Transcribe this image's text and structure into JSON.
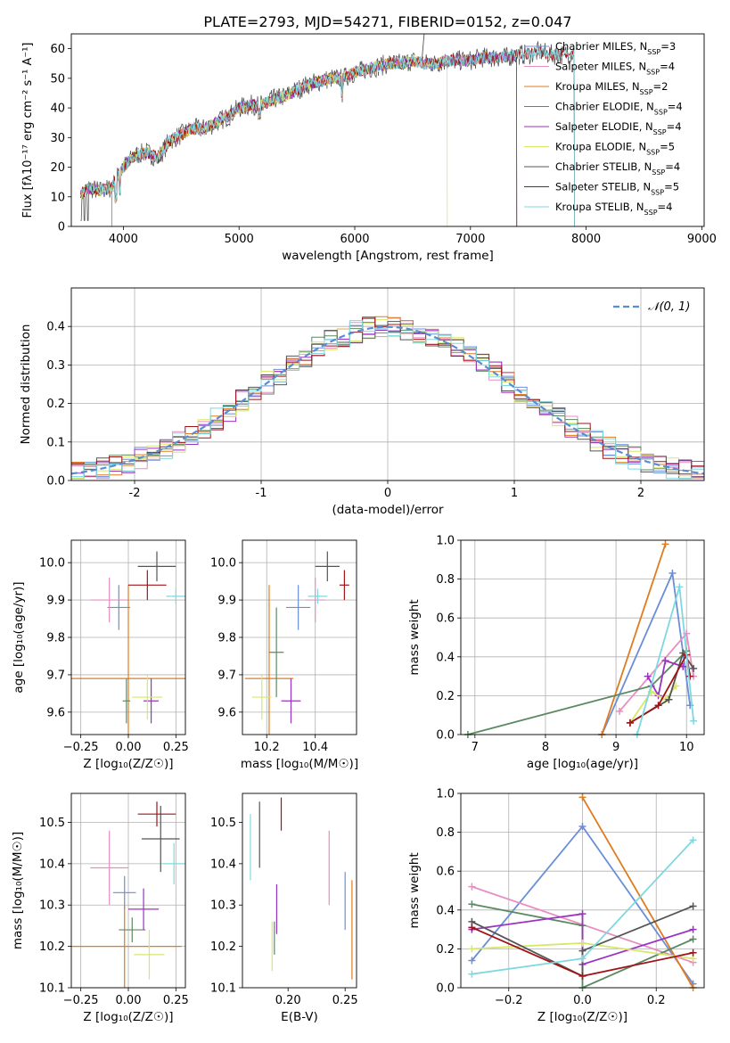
{
  "figure_title": "PLATE=2793, MJD=54271, FIBERID=0152, z=0.047",
  "colors": {
    "Chabrier MILES": "#6a8fd8",
    "Salpeter MILES": "#e88ec0",
    "Kroupa MILES": "#e07b1f",
    "Chabrier ELODIE": "#5b8a62",
    "Salpeter ELODIE": "#9c32c0",
    "Kroupa ELODIE": "#d6e86a",
    "Chabrier STELIB": "#555555",
    "Salpeter STELIB": "#a01418",
    "Kroupa STELIB": "#7fd8e0"
  },
  "legend_spectrum": [
    {
      "model": "Chabrier MILES",
      "label": "Chabrier MILES, N",
      "sub": "SSP",
      "suffix": "=3"
    },
    {
      "model": "Salpeter MILES",
      "label": "Salpeter MILES, N",
      "sub": "SSP",
      "suffix": "=4"
    },
    {
      "model": "Kroupa MILES",
      "label": "Kroupa MILES, N",
      "sub": "SSP",
      "suffix": "=2"
    },
    {
      "model": "Chabrier ELODIE",
      "label": "Chabrier ELODIE, N",
      "sub": "SSP",
      "suffix": "=4"
    },
    {
      "model": "Salpeter ELODIE",
      "label": "Salpeter ELODIE, N",
      "sub": "SSP",
      "suffix": "=4"
    },
    {
      "model": "Kroupa ELODIE",
      "label": "Kroupa ELODIE, N",
      "sub": "SSP",
      "suffix": "=5"
    },
    {
      "model": "Chabrier STELIB",
      "label": "Chabrier STELIB, N",
      "sub": "SSP",
      "suffix": "=4"
    },
    {
      "model": "Salpeter STELIB",
      "label": "Salpeter STELIB, N",
      "sub": "SSP",
      "suffix": "=5"
    },
    {
      "model": "Kroupa STELIB",
      "label": "Kroupa STELIB, N",
      "sub": "SSP",
      "suffix": "=4"
    }
  ],
  "chart_data": [
    {
      "type": "line",
      "id": "spectrum",
      "xlabel": "wavelength [Angstrom, rest frame]",
      "ylabel": "Flux [fλ10⁻¹⁷ erg cm⁻² s⁻¹ A⁻¹]",
      "xlim": [
        3550,
        9020
      ],
      "ylim": [
        0,
        65
      ],
      "xticks": [
        4000,
        5000,
        6000,
        7000,
        8000,
        9000
      ],
      "yticks": [
        0,
        10,
        20,
        30,
        40,
        50,
        60
      ],
      "grid": false,
      "legend_position": "top-right",
      "continuum": [
        [
          3630,
          11
        ],
        [
          3700,
          13
        ],
        [
          3800,
          12
        ],
        [
          3900,
          13
        ],
        [
          3950,
          17
        ],
        [
          4000,
          20
        ],
        [
          4100,
          24
        ],
        [
          4200,
          25
        ],
        [
          4300,
          23
        ],
        [
          4400,
          29
        ],
        [
          4500,
          31
        ],
        [
          4600,
          33
        ],
        [
          4700,
          33
        ],
        [
          4800,
          35
        ],
        [
          4900,
          37
        ],
        [
          5000,
          40
        ],
        [
          5100,
          41
        ],
        [
          5200,
          41
        ],
        [
          5300,
          43
        ],
        [
          5400,
          44
        ],
        [
          5500,
          46
        ],
        [
          5600,
          48
        ],
        [
          5700,
          49
        ],
        [
          5800,
          50
        ],
        [
          5900,
          50
        ],
        [
          6000,
          52
        ],
        [
          6100,
          53
        ],
        [
          6200,
          54
        ],
        [
          6300,
          55
        ],
        [
          6400,
          55
        ],
        [
          6500,
          56
        ],
        [
          6600,
          55
        ],
        [
          6700,
          55
        ],
        [
          6800,
          56
        ],
        [
          6900,
          56
        ],
        [
          7000,
          56
        ],
        [
          7100,
          57
        ],
        [
          7200,
          57
        ],
        [
          7300,
          57
        ],
        [
          7400,
          58
        ],
        [
          7500,
          58
        ],
        [
          7600,
          59
        ],
        [
          7700,
          58
        ],
        [
          7800,
          58
        ],
        [
          7900,
          59
        ]
      ],
      "models_end_wavelength": {
        "Chabrier MILES": 7400,
        "Salpeter MILES": 7400,
        "Kroupa MILES": 7400,
        "Kroupa ELODIE": 6800,
        "Salpeter ELODIE": 7400,
        "Chabrier ELODIE": 7400,
        "Chabrier STELIB": 7900,
        "Salpeter STELIB": 7900,
        "Kroupa STELIB": 7900
      }
    },
    {
      "type": "histogram",
      "id": "residuals",
      "xlabel": "(data-model)/error",
      "ylabel": "Normed distribution",
      "xlim": [
        -2.5,
        2.5
      ],
      "ylim": [
        0,
        0.5
      ],
      "xticks": [
        -2,
        -1,
        0,
        1,
        2
      ],
      "yticks": [
        0.0,
        0.1,
        0.2,
        0.3,
        0.4
      ],
      "grid": true,
      "bin_width": 0.1,
      "reference_curve": {
        "label": "𝒩(0, 1)",
        "color": "#5b8bd0",
        "style": "dashed",
        "mean": 0,
        "sigma": 1
      },
      "legend_position": "top-right"
    },
    {
      "type": "errorbar",
      "id": "age_vs_Z",
      "xlabel": "Z [log₁₀(Z/Z☉)]",
      "ylabel": "age  [log₁₀(age/yr)]",
      "xlim": [
        -0.3,
        0.3
      ],
      "ylim": [
        9.54,
        10.06
      ],
      "xticks": [
        -0.25,
        0.0,
        0.25
      ],
      "xticklabels": [
        "−0.25",
        "0.00",
        "0.25"
      ],
      "yticks": [
        9.6,
        9.7,
        9.8,
        9.9,
        10.0
      ],
      "grid": true,
      "points": [
        {
          "model": "Chabrier MILES",
          "x": -0.05,
          "y": 9.88,
          "xerr": 0.06,
          "yerr": 0.06
        },
        {
          "model": "Salpeter MILES",
          "x": -0.1,
          "y": 9.9,
          "xerr": 0.1,
          "yerr": 0.06
        },
        {
          "model": "Kroupa MILES",
          "x": 0.0,
          "y": 9.69,
          "xerr": 0.3,
          "yerr": 0.25
        },
        {
          "model": "Chabrier ELODIE",
          "x": -0.01,
          "y": 9.63,
          "xerr": 0.02,
          "yerr": 0.06
        },
        {
          "model": "Salpeter ELODIE",
          "x": 0.12,
          "y": 9.63,
          "xerr": 0.04,
          "yerr": 0.06
        },
        {
          "model": "Kroupa ELODIE",
          "x": 0.1,
          "y": 9.64,
          "xerr": 0.08,
          "yerr": 0.06
        },
        {
          "model": "Chabrier STELIB",
          "x": 0.15,
          "y": 9.99,
          "xerr": 0.1,
          "yerr": 0.04
        },
        {
          "model": "Salpeter STELIB",
          "x": 0.1,
          "y": 9.94,
          "xerr": 0.1,
          "yerr": 0.04
        },
        {
          "model": "Kroupa STELIB",
          "x": 0.25,
          "y": 9.91,
          "xerr": 0.05,
          "yerr": 0.02
        }
      ]
    },
    {
      "type": "errorbar",
      "id": "age_vs_mass",
      "xlabel": "mass [log₁₀(M/M☉)]",
      "ylabel": "",
      "xlim": [
        10.1,
        10.57
      ],
      "ylim": [
        9.54,
        10.06
      ],
      "xticks": [
        10.2,
        10.4
      ],
      "yticks": [
        9.6,
        9.7,
        9.8,
        9.9,
        10.0
      ],
      "grid": true,
      "points": [
        {
          "model": "Chabrier MILES",
          "x": 10.33,
          "y": 9.88,
          "xerr": 0.05,
          "yerr": 0.06
        },
        {
          "model": "Salpeter MILES",
          "x": 10.4,
          "y": 9.9,
          "xerr": 0.04,
          "yerr": 0.06
        },
        {
          "model": "Kroupa MILES",
          "x": 10.21,
          "y": 9.69,
          "xerr": 0.1,
          "yerr": 0.25
        },
        {
          "model": "Chabrier ELODIE",
          "x": 10.24,
          "y": 9.76,
          "xerr": 0.03,
          "yerr": 0.12
        },
        {
          "model": "Salpeter ELODIE",
          "x": 10.3,
          "y": 9.63,
          "xerr": 0.04,
          "yerr": 0.06
        },
        {
          "model": "Kroupa ELODIE",
          "x": 10.18,
          "y": 9.64,
          "xerr": 0.04,
          "yerr": 0.06
        },
        {
          "model": "Chabrier STELIB",
          "x": 10.45,
          "y": 9.99,
          "xerr": 0.05,
          "yerr": 0.04
        },
        {
          "model": "Salpeter STELIB",
          "x": 10.52,
          "y": 9.94,
          "xerr": 0.02,
          "yerr": 0.04
        },
        {
          "model": "Kroupa STELIB",
          "x": 10.41,
          "y": 9.91,
          "xerr": 0.04,
          "yerr": 0.02
        }
      ]
    },
    {
      "type": "line",
      "id": "mass_weight_vs_age",
      "xlabel": "age  [log₁₀(age/yr)]",
      "ylabel": "mass weight",
      "xlim": [
        6.8,
        10.25
      ],
      "ylim": [
        0,
        1
      ],
      "xticks": [
        7,
        8,
        9,
        10
      ],
      "yticks": [
        0.0,
        0.2,
        0.4,
        0.6,
        0.8,
        1.0
      ],
      "grid": true,
      "series": [
        {
          "model": "Chabrier MILES",
          "points": [
            [
              8.8,
              0.0
            ],
            [
              9.8,
              0.83
            ],
            [
              10.05,
              0.15
            ]
          ]
        },
        {
          "model": "Salpeter MILES",
          "points": [
            [
              9.05,
              0.12
            ],
            [
              10.0,
              0.52
            ],
            [
              10.1,
              0.3
            ]
          ]
        },
        {
          "model": "Kroupa MILES",
          "points": [
            [
              8.8,
              0.0
            ],
            [
              9.7,
              0.98
            ]
          ]
        },
        {
          "model": "Chabrier ELODIE",
          "points": [
            [
              6.9,
              0.0
            ],
            [
              9.5,
              0.25
            ],
            [
              10.0,
              0.43
            ]
          ]
        },
        {
          "model": "Salpeter ELODIE",
          "points": [
            [
              9.45,
              0.3
            ],
            [
              9.6,
              0.2
            ],
            [
              9.7,
              0.38
            ],
            [
              9.95,
              0.35
            ]
          ]
        },
        {
          "model": "Kroupa ELODIE",
          "points": [
            [
              9.2,
              0.06
            ],
            [
              9.5,
              0.22
            ],
            [
              9.7,
              0.18
            ],
            [
              9.85,
              0.25
            ]
          ]
        },
        {
          "model": "Chabrier STELIB",
          "points": [
            [
              9.2,
              0.06
            ],
            [
              9.75,
              0.18
            ],
            [
              9.95,
              0.42
            ],
            [
              10.1,
              0.34
            ]
          ]
        },
        {
          "model": "Salpeter STELIB",
          "points": [
            [
              9.2,
              0.06
            ],
            [
              9.6,
              0.15
            ],
            [
              10.0,
              0.41
            ],
            [
              10.05,
              0.3
            ]
          ]
        },
        {
          "model": "Kroupa STELIB",
          "points": [
            [
              9.3,
              0.0
            ],
            [
              9.9,
              0.76
            ],
            [
              10.1,
              0.07
            ]
          ]
        }
      ]
    },
    {
      "type": "errorbar",
      "id": "mass_vs_Z",
      "xlabel": "Z [log₁₀(Z/Z☉)]",
      "ylabel": "mass [log₁₀(M/M☉)]",
      "xlim": [
        -0.3,
        0.3
      ],
      "ylim": [
        10.1,
        10.57
      ],
      "xticks": [
        -0.25,
        0.0,
        0.25
      ],
      "xticklabels": [
        "−0.25",
        "0.00",
        "0.25"
      ],
      "yticks": [
        10.1,
        10.2,
        10.3,
        10.4,
        10.5
      ],
      "grid": true,
      "points": [
        {
          "model": "Chabrier MILES",
          "x": -0.02,
          "y": 10.33,
          "xerr": 0.06,
          "yerr": 0.04
        },
        {
          "model": "Salpeter MILES",
          "x": -0.1,
          "y": 10.39,
          "xerr": 0.1,
          "yerr": 0.09
        },
        {
          "model": "Kroupa MILES",
          "x": -0.02,
          "y": 10.2,
          "xerr": 0.3,
          "yerr": 0.1
        },
        {
          "model": "Chabrier ELODIE",
          "x": 0.02,
          "y": 10.24,
          "xerr": 0.07,
          "yerr": 0.03
        },
        {
          "model": "Salpeter ELODIE",
          "x": 0.08,
          "y": 10.29,
          "xerr": 0.08,
          "yerr": 0.05
        },
        {
          "model": "Kroupa ELODIE",
          "x": 0.11,
          "y": 10.18,
          "xerr": 0.08,
          "yerr": 0.06
        },
        {
          "model": "Chabrier STELIB",
          "x": 0.17,
          "y": 10.46,
          "xerr": 0.1,
          "yerr": 0.08
        },
        {
          "model": "Salpeter STELIB",
          "x": 0.15,
          "y": 10.52,
          "xerr": 0.1,
          "yerr": 0.03
        },
        {
          "model": "Kroupa STELIB",
          "x": 0.24,
          "y": 10.4,
          "xerr": 0.06,
          "yerr": 0.05
        }
      ]
    },
    {
      "type": "errorbar",
      "id": "mass_vs_ebv",
      "xlabel": "E(B-V)",
      "ylabel": "",
      "xlim": [
        0.16,
        0.26
      ],
      "ylim": [
        10.1,
        10.57
      ],
      "xticks": [
        0.2,
        0.25
      ],
      "xticklabels": [
        "0.20",
        "0.25"
      ],
      "yticks": [
        10.1,
        10.2,
        10.3,
        10.4,
        10.5
      ],
      "grid": false,
      "points": [
        {
          "model": "Chabrier MILES",
          "x": 0.25,
          "y": 10.31,
          "xerr": 0,
          "yerr": 0.07
        },
        {
          "model": "Salpeter MILES",
          "x": 0.236,
          "y": 10.39,
          "xerr": 0,
          "yerr": 0.09
        },
        {
          "model": "Kroupa MILES",
          "x": 0.256,
          "y": 10.24,
          "xerr": 0,
          "yerr": 0.12
        },
        {
          "model": "Chabrier ELODIE",
          "x": 0.188,
          "y": 10.22,
          "xerr": 0,
          "yerr": 0.04
        },
        {
          "model": "Salpeter ELODIE",
          "x": 0.19,
          "y": 10.29,
          "xerr": 0,
          "yerr": 0.06
        },
        {
          "model": "Kroupa ELODIE",
          "x": 0.186,
          "y": 10.2,
          "xerr": 0,
          "yerr": 0.06
        },
        {
          "model": "Chabrier STELIB",
          "x": 0.175,
          "y": 10.47,
          "xerr": 0,
          "yerr": 0.08
        },
        {
          "model": "Salpeter STELIB",
          "x": 0.194,
          "y": 10.52,
          "xerr": 0,
          "yerr": 0.04
        },
        {
          "model": "Kroupa STELIB",
          "x": 0.167,
          "y": 10.44,
          "xerr": 0,
          "yerr": 0.08
        }
      ]
    },
    {
      "type": "line",
      "id": "mass_weight_vs_Z",
      "xlabel": "Z [log₁₀(Z/Z☉)]",
      "ylabel": "mass weight",
      "xlim": [
        -0.33,
        0.33
      ],
      "ylim": [
        0,
        1
      ],
      "xticks": [
        -0.2,
        0.0,
        0.2
      ],
      "xticklabels": [
        "−0.2",
        "0.0",
        "0.2"
      ],
      "yticks": [
        0.0,
        0.2,
        0.4,
        0.6,
        0.8,
        1.0
      ],
      "grid": true,
      "series": [
        {
          "model": "Chabrier MILES",
          "points": [
            [
              -0.3,
              0.14
            ],
            [
              0.0,
              0.83
            ],
            [
              0.3,
              0.02
            ]
          ]
        },
        {
          "model": "Salpeter MILES",
          "points": [
            [
              -0.3,
              0.52
            ],
            [
              0.3,
              0.13
            ]
          ]
        },
        {
          "model": "Kroupa MILES",
          "points": [
            [
              0.0,
              0.98
            ],
            [
              0.3,
              0.0
            ]
          ]
        },
        {
          "model": "Chabrier ELODIE",
          "points": [
            [
              -0.3,
              0.43
            ],
            [
              0.0,
              0.32
            ],
            [
              0.0,
              0.0
            ],
            [
              0.3,
              0.25
            ]
          ]
        },
        {
          "model": "Salpeter ELODIE",
          "points": [
            [
              -0.3,
              0.3
            ],
            [
              0.0,
              0.38
            ],
            [
              0.0,
              0.12
            ],
            [
              0.3,
              0.3
            ]
          ]
        },
        {
          "model": "Kroupa ELODIE",
          "points": [
            [
              -0.3,
              0.2
            ],
            [
              0.0,
              0.23
            ],
            [
              0.3,
              0.15
            ]
          ]
        },
        {
          "model": "Chabrier STELIB",
          "points": [
            [
              -0.3,
              0.34
            ],
            [
              0.0,
              0.06
            ],
            [
              0.0,
              0.19
            ],
            [
              0.3,
              0.42
            ]
          ]
        },
        {
          "model": "Salpeter STELIB",
          "points": [
            [
              -0.3,
              0.31
            ],
            [
              0.0,
              0.06
            ],
            [
              0.3,
              0.18
            ]
          ]
        },
        {
          "model": "Kroupa STELIB",
          "points": [
            [
              -0.3,
              0.07
            ],
            [
              0.0,
              0.15
            ],
            [
              0.3,
              0.76
            ]
          ]
        }
      ]
    }
  ]
}
